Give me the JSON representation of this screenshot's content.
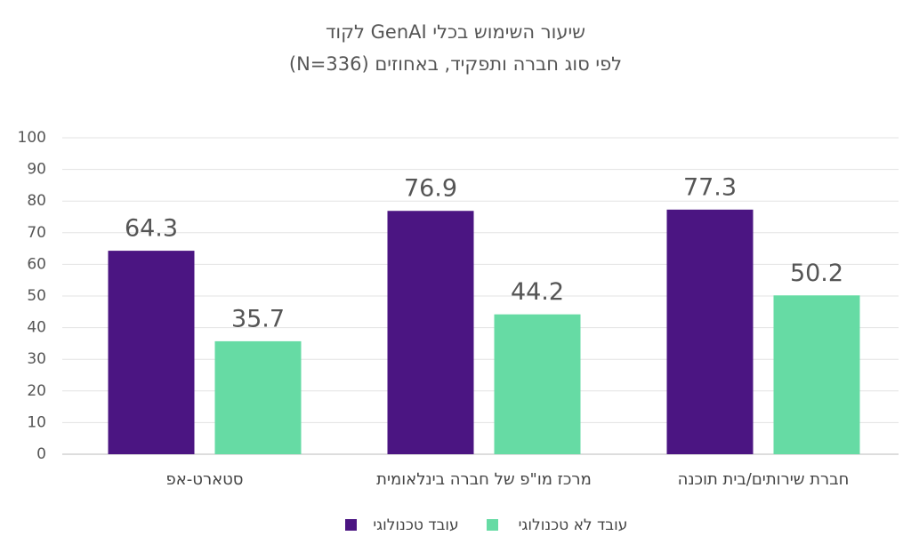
{
  "chart_data": {
    "type": "bar",
    "title": "שיעור השימוש בכלי GenAI לקוד",
    "subtitle": "לפי סוג חברה ותפקיד, באחוזים (N=336)",
    "categories": [
      "סטארט-אפ",
      "מרכז מו\"פ של חברה בינלאומית",
      "חברת שירותים/בית תוכנה"
    ],
    "series": [
      {
        "name": "עובד טכנולוגי",
        "color": "#4b1582",
        "values": [
          64.3,
          76.9,
          77.3
        ]
      },
      {
        "name": "עובד לא טכנולוגי",
        "color": "#66dba4",
        "values": [
          35.7,
          44.2,
          50.2
        ]
      }
    ],
    "ylim": [
      0,
      100
    ],
    "yticks": [
      0,
      10,
      20,
      30,
      40,
      50,
      60,
      70,
      80,
      90,
      100
    ],
    "grid": true,
    "legend": "bottom"
  }
}
